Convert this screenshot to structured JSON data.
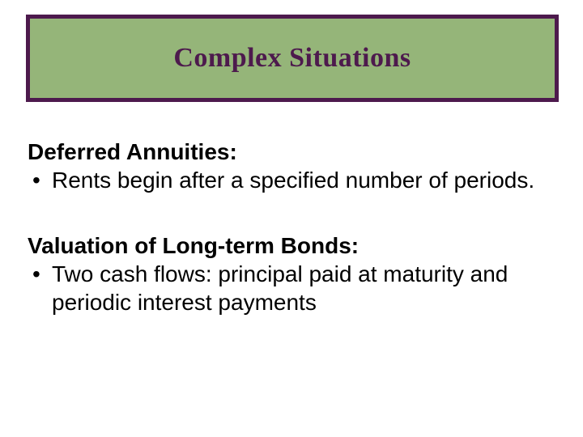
{
  "title": {
    "text": "Complex Situations",
    "bg_color": "#95b579",
    "border_color": "#4d1a4d",
    "border_width": 5,
    "text_color": "#4d1a4d"
  },
  "section1": {
    "heading": "Deferred Annuities:",
    "bullet": "Rents begin after a specified number of periods."
  },
  "section2": {
    "heading": "Valuation of Long-term Bonds:",
    "bullet": "Two cash flows: principal paid at maturity and periodic interest payments"
  },
  "bullet_char": "•"
}
